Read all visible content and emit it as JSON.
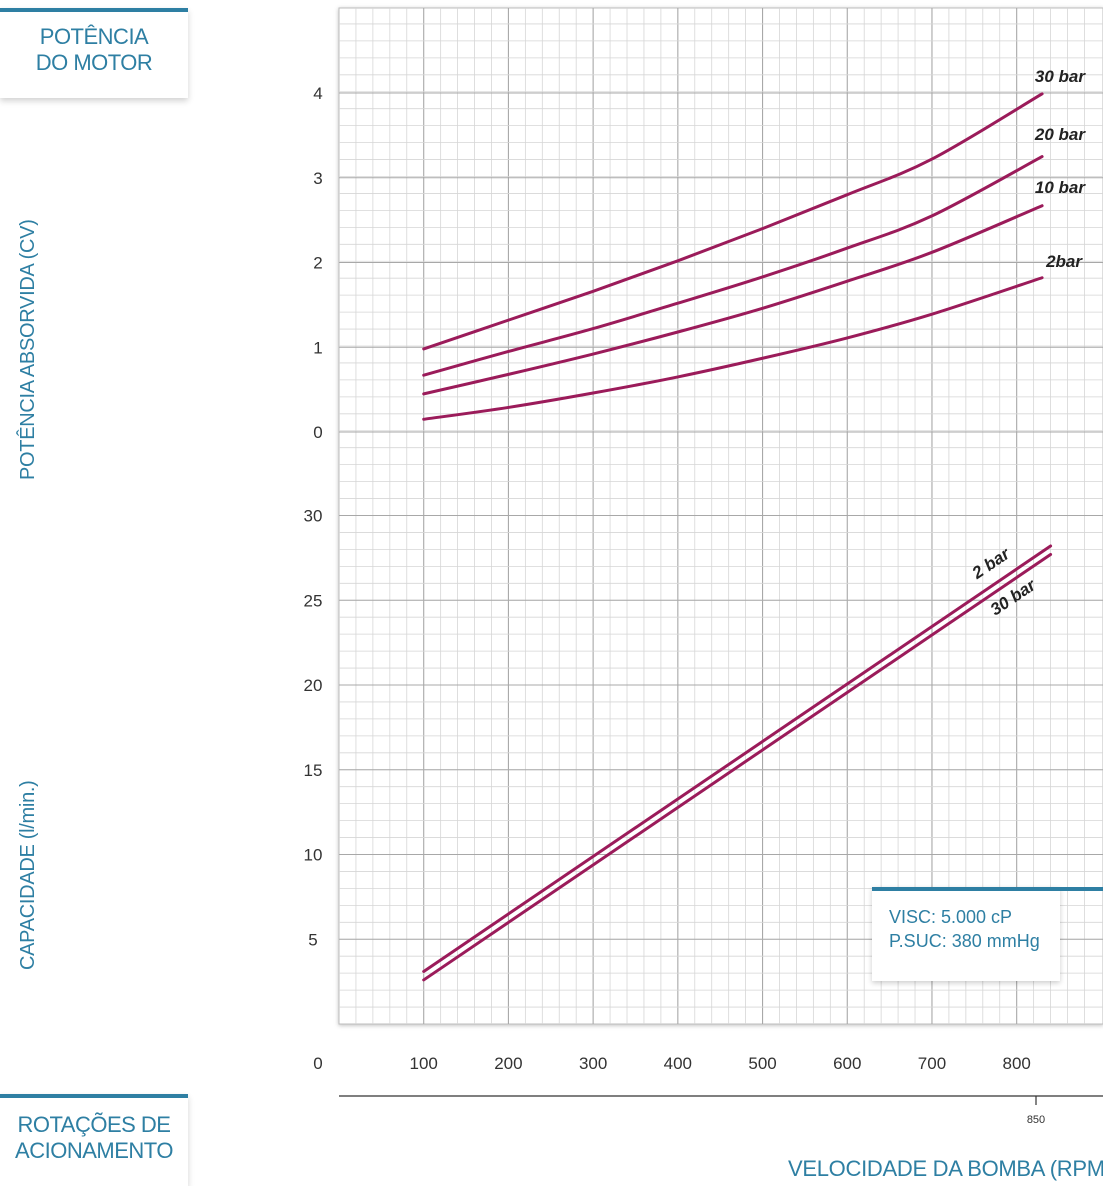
{
  "labels": {
    "motor_box": [
      "POTÊNCIA",
      "DO MOTOR"
    ],
    "rotations_box": [
      "ROTAÇÕES DE",
      "ACIONAMENTO"
    ],
    "y_power_label": "POTÊNCIA ABSORVIDA (CV)",
    "y_capacity_label": "CAPACIDADE (l/min.)",
    "x_label": "VELOCIDADE DA BOMBA (RPM)",
    "note": [
      "VISC: 5.000 cP",
      "P.SUC: 380 mmHg"
    ],
    "origin_label": "0",
    "speed_marker": "850"
  },
  "colors": {
    "accent": "#2e7fa3",
    "curve": "#9b1b5a",
    "grid_major": "#a8a8a8",
    "grid_minor": "#d6d6d6"
  },
  "chart_data": [
    {
      "type": "line",
      "title": "",
      "ylabel": "POTÊNCIA ABSORVIDA (CV)",
      "xlabel": "VELOCIDADE DA BOMBA (RPM)",
      "xlim": [
        0,
        850
      ],
      "ylim": [
        0,
        4
      ],
      "xticks": [
        100,
        200,
        300,
        400,
        500,
        600,
        700,
        800
      ],
      "yticks": [
        0,
        1,
        2,
        3,
        4
      ],
      "grid": true,
      "series": [
        {
          "name": "30 bar",
          "x": [
            100,
            200,
            300,
            400,
            500,
            600,
            700,
            830
          ],
          "y": [
            0.98,
            1.32,
            1.66,
            2.02,
            2.4,
            2.8,
            3.22,
            3.99
          ]
        },
        {
          "name": "20 bar",
          "x": [
            100,
            200,
            300,
            400,
            500,
            600,
            700,
            830
          ],
          "y": [
            0.67,
            0.95,
            1.22,
            1.52,
            1.83,
            2.17,
            2.55,
            3.25
          ]
        },
        {
          "name": "10 bar",
          "x": [
            100,
            200,
            300,
            400,
            500,
            600,
            700,
            830
          ],
          "y": [
            0.45,
            0.68,
            0.92,
            1.18,
            1.46,
            1.78,
            2.12,
            2.67
          ]
        },
        {
          "name": "2bar",
          "x": [
            100,
            200,
            300,
            400,
            500,
            600,
            700,
            830
          ],
          "y": [
            0.15,
            0.29,
            0.46,
            0.65,
            0.87,
            1.11,
            1.39,
            1.82
          ]
        }
      ]
    },
    {
      "type": "line",
      "title": "",
      "ylabel": "CAPACIDADE (l/min.)",
      "xlabel": "VELOCIDADE DA BOMBA (RPM)",
      "xlim": [
        0,
        850
      ],
      "ylim": [
        0,
        30
      ],
      "xticks": [
        100,
        200,
        300,
        400,
        500,
        600,
        700,
        800
      ],
      "yticks": [
        5,
        10,
        15,
        20,
        25,
        30
      ],
      "grid": true,
      "series": [
        {
          "name": "2 bar",
          "x": [
            100,
            840
          ],
          "y": [
            3.1,
            28.2
          ]
        },
        {
          "name": "30 bar",
          "x": [
            100,
            840
          ],
          "y": [
            2.6,
            27.7
          ]
        }
      ]
    }
  ]
}
